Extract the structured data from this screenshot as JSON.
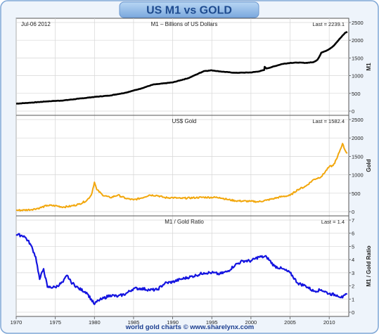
{
  "header": {
    "title": "US M1 vs GOLD",
    "date_label": "Jul-06 2012",
    "footer": "world gold charts © www.sharelynx.com"
  },
  "colors": {
    "title_gradient_top": "#b8d6f4",
    "title_gradient_bottom": "#7aa8de",
    "title_text": "#1e4b8f",
    "frame": "#7fa7d6",
    "m1_line": "#000000",
    "gold_line": "#f2a70c",
    "ratio_line": "#1414e0",
    "grid": "#d6d6d6",
    "footer_text": "#1a3d8f"
  },
  "chart_data": [
    {
      "type": "line",
      "title": "M1  –  Billions of US Dollars",
      "ylabel": "M1",
      "last_label": "Last = 2239.1",
      "x_range": [
        1970,
        2012.5
      ],
      "ylim": [
        0,
        2500
      ],
      "yticks": [
        0,
        500,
        1000,
        1500,
        2000,
        2500
      ],
      "grid": true,
      "series": [
        {
          "x": [
            1970,
            1972,
            1974,
            1976,
            1978,
            1980,
            1982,
            1984,
            1986,
            1987.5,
            1988,
            1990,
            1992,
            1993,
            1994,
            1995,
            1996,
            1998,
            2000,
            2001,
            2001.7,
            2001.75,
            2002,
            2004,
            2005,
            2006,
            2007,
            2008,
            2008.5,
            2008.8,
            2009,
            2009.5,
            2010,
            2010.5,
            2011,
            2011.5,
            2012,
            2012.3
          ],
          "y": [
            210,
            240,
            275,
            300,
            350,
            400,
            440,
            520,
            640,
            750,
            760,
            810,
            930,
            1030,
            1130,
            1150,
            1120,
            1080,
            1090,
            1120,
            1160,
            1250,
            1200,
            1330,
            1360,
            1370,
            1360,
            1380,
            1450,
            1560,
            1650,
            1690,
            1750,
            1830,
            1950,
            2080,
            2200,
            2239.1
          ]
        }
      ]
    },
    {
      "type": "line",
      "title": "US$ Gold",
      "ylabel": "Gold",
      "last_label": "Last = 1582.4",
      "x_range": [
        1970,
        2012.5
      ],
      "ylim": [
        0,
        2500
      ],
      "yticks": [
        0,
        500,
        1000,
        1500,
        2000,
        2500
      ],
      "grid": true,
      "series": [
        {
          "x": [
            1970,
            1971,
            1972,
            1973,
            1974,
            1975,
            1976,
            1977,
            1978,
            1979,
            1979.6,
            1980,
            1980.3,
            1981,
            1982,
            1983,
            1984,
            1985,
            1986,
            1987,
            1988,
            1989,
            1990,
            1991,
            1993,
            1994,
            1996,
            1997,
            1998,
            2000,
            2001,
            2002,
            2003,
            2004,
            2005,
            2006,
            2007,
            2008,
            2009,
            2010,
            2010.5,
            2011,
            2011.7,
            2012,
            2012.3
          ],
          "y": [
            36,
            42,
            58,
            100,
            170,
            160,
            125,
            150,
            200,
            300,
            450,
            800,
            600,
            460,
            380,
            450,
            360,
            320,
            370,
            450,
            440,
            380,
            380,
            360,
            380,
            390,
            385,
            330,
            295,
            280,
            270,
            310,
            360,
            410,
            440,
            600,
            690,
            870,
            950,
            1220,
            1250,
            1450,
            1850,
            1680,
            1582.4
          ]
        }
      ]
    },
    {
      "type": "line",
      "title": "M1 / Gold Ratio",
      "ylabel": "M1 / Gold Ratio",
      "last_label": "Last = 1.4",
      "x_range": [
        1970,
        2012.5
      ],
      "ylim": [
        0,
        7
      ],
      "yticks": [
        0,
        1,
        2,
        3,
        4,
        5,
        6,
        7
      ],
      "grid": true,
      "series": [
        {
          "x": [
            1970,
            1971,
            1971.8,
            1972.5,
            1973,
            1973.5,
            1974,
            1975,
            1976,
            1976.5,
            1977,
            1978,
            1979,
            1980,
            1980.5,
            1981,
            1982,
            1983,
            1984,
            1985,
            1986,
            1987,
            1988,
            1989,
            1990,
            1991,
            1993,
            1994,
            1995,
            1996,
            1997,
            1998,
            1999,
            2000,
            2001,
            2002,
            2003,
            2004,
            2005,
            2006,
            2007,
            2008,
            2009,
            2010,
            2011,
            2011.7,
            2012.3
          ],
          "y": [
            5.9,
            5.8,
            5.2,
            4.2,
            2.5,
            3.3,
            1.9,
            1.9,
            2.3,
            2.8,
            2.3,
            1.8,
            1.5,
            0.6,
            0.9,
            1.0,
            1.3,
            1.2,
            1.4,
            1.8,
            1.8,
            1.7,
            1.7,
            2.2,
            2.3,
            2.5,
            2.8,
            3.0,
            3.0,
            2.9,
            3.1,
            3.6,
            3.9,
            3.9,
            4.2,
            4.2,
            3.5,
            3.3,
            3.0,
            2.2,
            2.0,
            1.6,
            1.7,
            1.4,
            1.3,
            1.1,
            1.4
          ]
        }
      ]
    }
  ],
  "x_axis": {
    "ticks": [
      1970,
      1975,
      1980,
      1985,
      1990,
      1995,
      2000,
      2005,
      2010
    ]
  }
}
